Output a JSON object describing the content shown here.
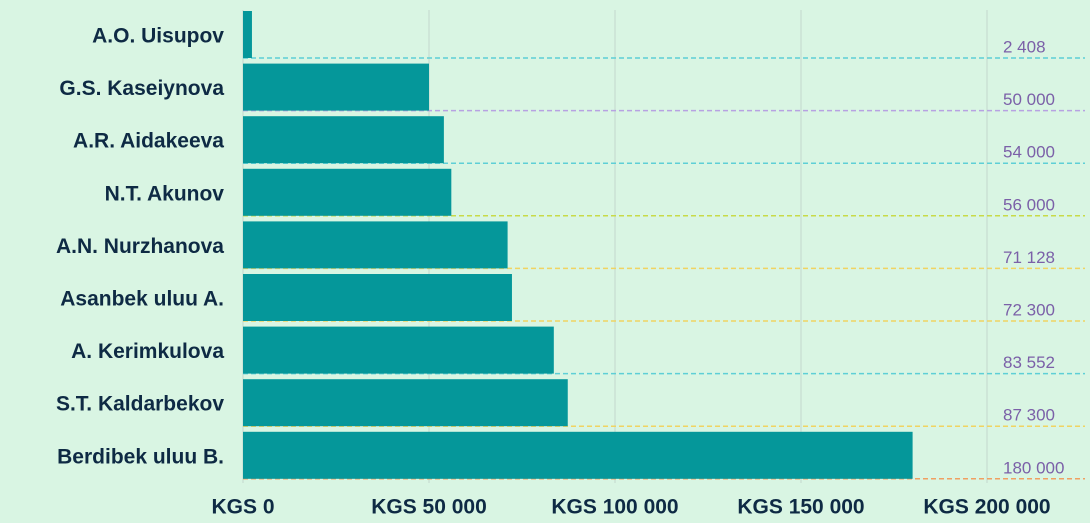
{
  "chart_data": {
    "type": "bar",
    "orientation": "horizontal",
    "categories": [
      "A.O. Uisupov",
      "G.S. Kaseiynova",
      "A.R. Aidakeeva",
      "N.T. Akunov",
      "A.N. Nurzhanova",
      "Asanbek uluu A.",
      "A. Kerimkulova",
      "S.T. Kaldarbekov",
      "Berdibek uluu B."
    ],
    "values": [
      2408,
      50000,
      54000,
      56000,
      71128,
      72300,
      83552,
      87300,
      180000
    ],
    "value_labels": [
      "2 408",
      "50 000",
      "54 000",
      "56 000",
      "71 128",
      "72 300",
      "83 552",
      "87 300",
      "180 000"
    ],
    "color": "#05979a",
    "xlim": [
      0,
      200000
    ],
    "xticks": [
      {
        "value": 0,
        "label": "KGS 0"
      },
      {
        "value": 50000,
        "label": "KGS 50 000"
      },
      {
        "value": 100000,
        "label": "KGS 100 000"
      },
      {
        "value": 150000,
        "label": "KGS 150 000"
      },
      {
        "value": 200000,
        "label": "KGS 200 000"
      }
    ],
    "grid": true
  }
}
